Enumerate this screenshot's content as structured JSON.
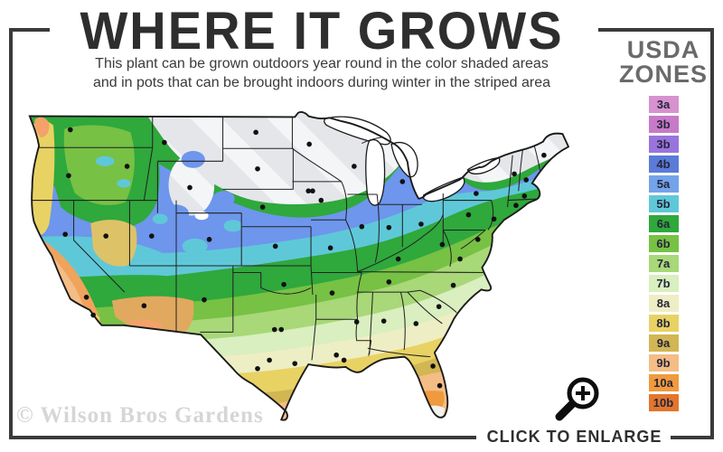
{
  "header": {
    "title": "WHERE IT GROWS",
    "subtitle_line1": "This plant can be grown outdoors year round in the color shaded areas",
    "subtitle_line2": "and in pots that can be brought indoors during winter in the striped area"
  },
  "legend": {
    "title_line1": "USDA",
    "title_line2": "ZONES",
    "zones": [
      {
        "label": "3a",
        "color": "#d792cf"
      },
      {
        "label": "3b",
        "color": "#c77ac7"
      },
      {
        "label": "3b",
        "color": "#9a74dd"
      },
      {
        "label": "4b",
        "color": "#5a7bd8"
      },
      {
        "label": "5a",
        "color": "#74a3ea"
      },
      {
        "label": "5b",
        "color": "#5fc8d8"
      },
      {
        "label": "6a",
        "color": "#2fa83c"
      },
      {
        "label": "6b",
        "color": "#77c144"
      },
      {
        "label": "7a",
        "color": "#a8d878"
      },
      {
        "label": "7b",
        "color": "#d9efbf"
      },
      {
        "label": "8a",
        "color": "#eeeec5"
      },
      {
        "label": "8b",
        "color": "#e8d264"
      },
      {
        "label": "9a",
        "color": "#d2b654"
      },
      {
        "label": "9b",
        "color": "#f3bd85"
      },
      {
        "label": "10a",
        "color": "#f09a3e"
      },
      {
        "label": "10b",
        "color": "#e2762e"
      }
    ]
  },
  "map": {
    "stripe_base_color": "#e4e6e9",
    "stripe_highlight_color": "#f4f5f7"
  },
  "footer": {
    "watermark": "© Wilson Bros Gardens",
    "enlarge_label": "CLICK TO ENLARGE"
  },
  "icons": {
    "enlarge": "magnifying-glass-plus"
  },
  "colors": {
    "frame": "#3a3a3a",
    "title": "#2e2e2e",
    "subtitle": "#3a3a3a",
    "legend_title": "#6a6a6a",
    "watermark": "#d6d6d6",
    "enlarge_label": "#2f2f2f"
  }
}
